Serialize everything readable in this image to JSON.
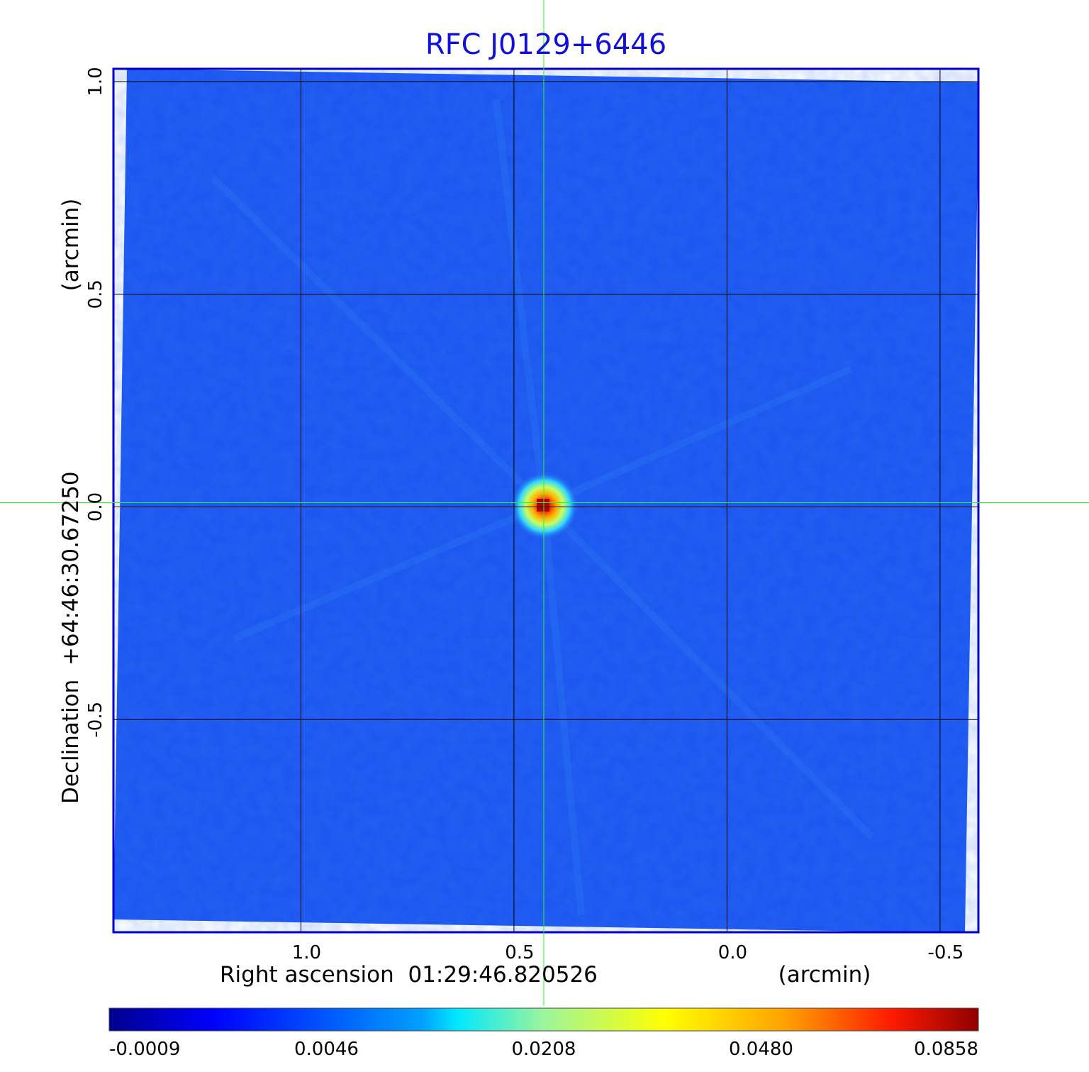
{
  "chart_data": {
    "type": "heatmap",
    "title": "RFC J0129+6446",
    "xlabel": "Right ascension  01:29:46.820526",
    "xunit": "(arcmin)",
    "ylabel": "Declination  +64:46:30.67250",
    "yunit": "(arcmin)",
    "x_ticks": [
      "1.0",
      "0.5",
      "0.0",
      "-0.5"
    ],
    "x_tick_values": [
      1.0,
      0.5,
      0.0,
      -0.5
    ],
    "y_ticks": [
      "1.0",
      "0.5",
      "0.0",
      "-0.5"
    ],
    "y_tick_values": [
      1.0,
      0.5,
      0.0,
      -0.5
    ],
    "xlim": [
      1.44,
      -0.59
    ],
    "ylim": [
      -1.0,
      1.03
    ],
    "grid": true,
    "crosshair": {
      "x": 0.43,
      "y": 0.01
    },
    "peak": {
      "x": 0.43,
      "y": -0.005,
      "value": 0.0858
    },
    "colorbar": {
      "colormap": "jet",
      "ticks": [
        "-0.0009",
        "0.0046",
        "0.0208",
        "0.0480",
        "0.0858"
      ],
      "min": -0.0009,
      "max": 0.0858
    },
    "colors": {
      "background_field": "#1a56f0",
      "frame": "#0000c8",
      "grid": "#000000",
      "crosshair": "#33ee33",
      "title": "#1010d8"
    }
  }
}
